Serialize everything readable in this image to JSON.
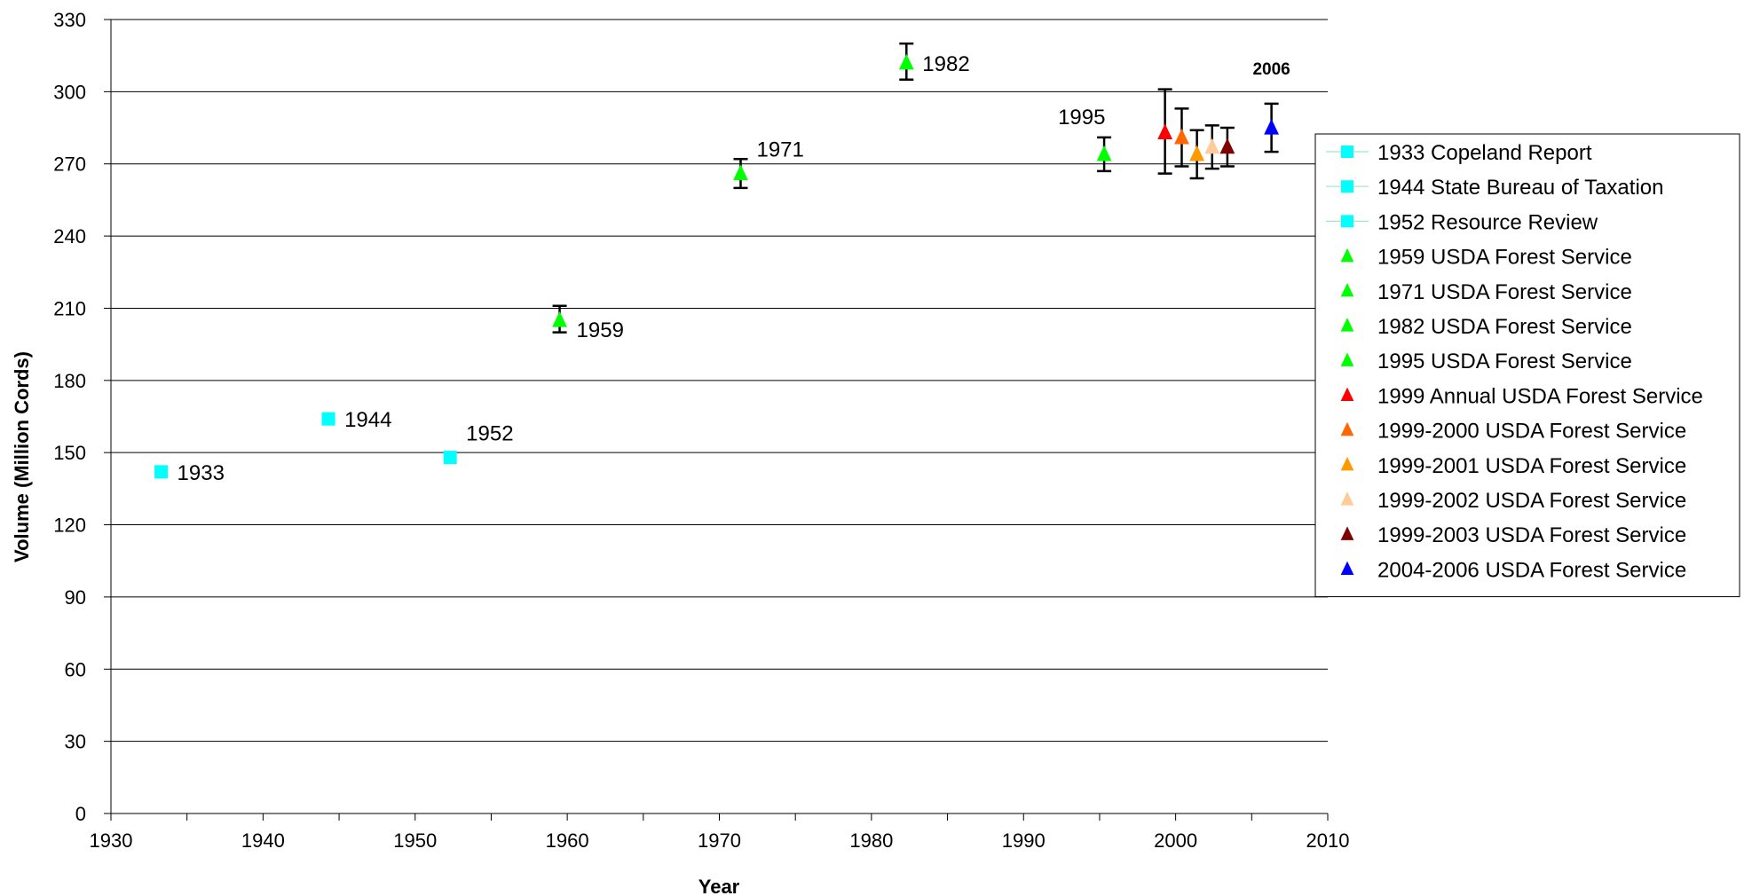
{
  "chart_data": {
    "type": "scatter",
    "title": "",
    "xlabel": "Year",
    "ylabel": "Volume (Million Cords)",
    "xlim": [
      1930,
      2010
    ],
    "ylim": [
      0,
      330
    ],
    "x_ticks": [
      1930,
      1940,
      1950,
      1960,
      1970,
      1980,
      1990,
      2000,
      2010
    ],
    "y_ticks": [
      0,
      30,
      60,
      90,
      120,
      150,
      180,
      210,
      240,
      270,
      300,
      330
    ],
    "grid": "horizontal",
    "legend_position": "right",
    "series": [
      {
        "name": "1933 Copeland Report",
        "marker": "square",
        "color": "#00FFFF",
        "x": 1933.3,
        "y": 142,
        "label": "1933",
        "label_pos": "right",
        "label_bold": false,
        "error": null
      },
      {
        "name": "1944 State Bureau of Taxation",
        "marker": "square",
        "color": "#00FFFF",
        "x": 1944.3,
        "y": 164,
        "label": "1944",
        "label_pos": "right",
        "label_bold": false,
        "error": null
      },
      {
        "name": "1952 Resource Review",
        "marker": "square",
        "color": "#00FFFF",
        "x": 1952.3,
        "y": 148,
        "label": "1952",
        "label_pos": "upper-right",
        "label_bold": false,
        "error": null
      },
      {
        "name": "1959 USDA Forest Service",
        "marker": "triangle",
        "color": "#00FF00",
        "x": 1959.5,
        "y": 205,
        "label": "1959",
        "label_pos": "lower-right",
        "label_bold": false,
        "error": [
          200,
          211
        ]
      },
      {
        "name": "1971 USDA Forest Service",
        "marker": "triangle",
        "color": "#00FF00",
        "x": 1971.4,
        "y": 266,
        "label": "1971",
        "label_pos": "upper-right",
        "label_bold": false,
        "error": [
          260,
          272
        ]
      },
      {
        "name": "1982 USDA Forest Service",
        "marker": "triangle",
        "color": "#00FF00",
        "x": 1982.3,
        "y": 312,
        "label": "1982",
        "label_pos": "right",
        "label_bold": false,
        "error": [
          305,
          320
        ]
      },
      {
        "name": "1995 USDA Forest Service",
        "marker": "triangle",
        "color": "#00FF00",
        "x": 1995.3,
        "y": 274,
        "label": "1995",
        "label_pos": "upper-left",
        "label_bold": false,
        "error": [
          267,
          281
        ]
      },
      {
        "name": "1999 Annual USDA Forest Service",
        "marker": "triangle",
        "color": "#FF0000",
        "x": 1999.3,
        "y": 283,
        "label": "",
        "label_pos": "",
        "label_bold": false,
        "error": [
          266,
          301
        ]
      },
      {
        "name": "1999-2000 USDA Forest Service",
        "marker": "triangle",
        "color": "#FF6600",
        "x": 2000.4,
        "y": 281,
        "label": "",
        "label_pos": "",
        "label_bold": false,
        "error": [
          269,
          293
        ]
      },
      {
        "name": "1999-2001 USDA Forest Service",
        "marker": "triangle",
        "color": "#FF9900",
        "x": 2001.4,
        "y": 274,
        "label": "",
        "label_pos": "",
        "label_bold": false,
        "error": [
          264,
          284
        ]
      },
      {
        "name": "1999-2002 USDA Forest Service",
        "marker": "triangle",
        "color": "#FFCC99",
        "x": 2002.4,
        "y": 277,
        "label": "",
        "label_pos": "",
        "label_bold": false,
        "error": [
          268,
          286
        ]
      },
      {
        "name": "1999-2003 USDA Forest Service",
        "marker": "triangle",
        "color": "#800000",
        "x": 2003.4,
        "y": 277,
        "label": "",
        "label_pos": "",
        "label_bold": false,
        "error": [
          269,
          285
        ]
      },
      {
        "name": "2004-2006 USDA Forest Service",
        "marker": "triangle",
        "color": "#0000FF",
        "x": 2006.3,
        "y": 285,
        "label": "2006",
        "label_pos": "above",
        "label_bold": true,
        "error": [
          275,
          295
        ]
      }
    ]
  }
}
